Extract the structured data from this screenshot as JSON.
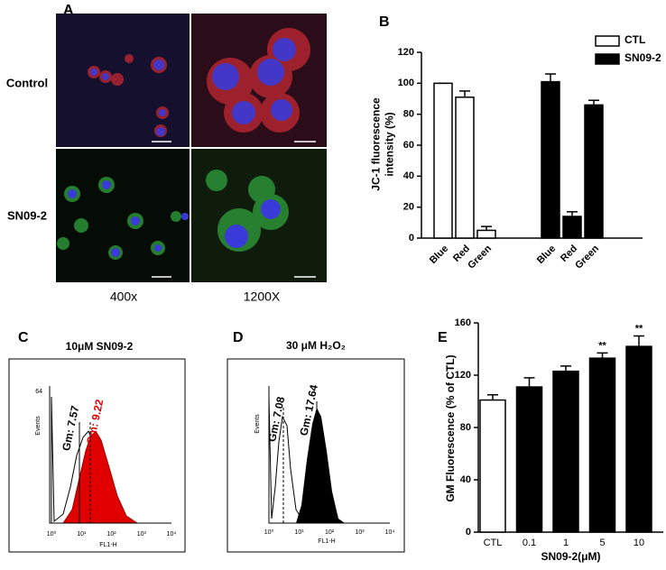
{
  "panel_a": {
    "label": "A",
    "rows": [
      "Control",
      "SN09-2"
    ],
    "columns": [
      "400x",
      "1200X"
    ]
  },
  "chart_data": [
    {
      "type": "bar",
      "panel_label": "B",
      "y_label": [
        "JC-1 fluorescence",
        "intensity (%)"
      ],
      "categories": [
        "Blue",
        "Red",
        "Green",
        "Blue",
        "Red",
        "Green"
      ],
      "series": [
        {
          "name": "CTL",
          "color": "#ffffff",
          "values": [
            100,
            91,
            5,
            null,
            null,
            null
          ],
          "errors": [
            0,
            4,
            2.5,
            null,
            null,
            null
          ]
        },
        {
          "name": "SN09-2",
          "color": "#000000",
          "values": [
            null,
            null,
            null,
            101,
            14,
            86
          ],
          "errors": [
            null,
            null,
            null,
            5,
            3,
            3
          ]
        }
      ],
      "ylim": [
        0,
        120
      ],
      "yticks": [
        0,
        20,
        40,
        60,
        80,
        100,
        120
      ],
      "legend": "upper right"
    },
    {
      "type": "bar",
      "panel_label": "E",
      "y_label": [
        "GM Fluorescence (% of CTL)"
      ],
      "x_label": "SN09-2(μM)",
      "categories": [
        "CTL",
        "0.1",
        "1",
        "5",
        "10"
      ],
      "series": [
        {
          "colors": [
            "#ffffff",
            "#000000",
            "#000000",
            "#000000",
            "#000000"
          ],
          "values": [
            101,
            111,
            123,
            133,
            142
          ],
          "errors": [
            4,
            7,
            4,
            4,
            8
          ]
        }
      ],
      "annotations": [
        null,
        null,
        null,
        "**",
        "**"
      ],
      "ylim": [
        0,
        160
      ],
      "yticks": [
        0,
        40,
        80,
        120,
        160
      ]
    }
  ],
  "panel_c": {
    "label": "C",
    "title": "10μM SN09-2",
    "y_axis_label": "Events",
    "y_tick": "64",
    "x_axis_label": "FL1-H",
    "x_ticks": [
      "10⁰",
      "10¹",
      "10²",
      "10³",
      "10⁴"
    ],
    "gm_labels": [
      "Gm: 7.57",
      "Gm: 9.22"
    ]
  },
  "panel_d": {
    "label": "D",
    "title": "30 μM H₂O₂",
    "y_axis_label": "Events",
    "x_axis_label": "FL1-H",
    "x_ticks": [
      "10⁰",
      "10¹",
      "10²",
      "10³",
      "10⁴"
    ],
    "gm_labels": [
      "Gm: 7.08",
      "Gm: 17.64"
    ]
  }
}
